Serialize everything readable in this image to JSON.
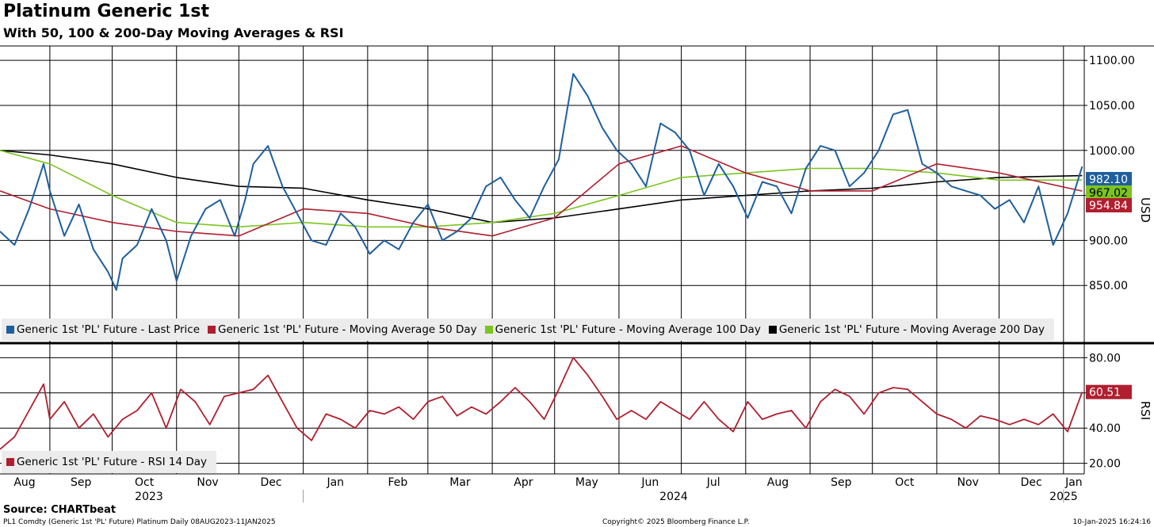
{
  "header": {
    "title": "Platinum Generic 1st",
    "subtitle": "With 50, 100 & 200-Day Moving Averages & RSI"
  },
  "footer": {
    "source": "Source: CHARTbeat",
    "left": "PL1 Comdty (Generic 1st 'PL' Future) Platinum  Daily 08AUG2023-11JAN2025",
    "center": "Copyright© 2025 Bloomberg Finance L.P.",
    "right": "10-Jan-2025 16:24:16"
  },
  "colors": {
    "price": "#1f5f9e",
    "ma50": "#b01f2f",
    "ma100": "#7cc41f",
    "ma200": "#000000",
    "rsi": "#b01f2f",
    "grid": "#000000"
  },
  "chart_data": [
    {
      "type": "line",
      "ylabel": "USD",
      "ylim": [
        822,
        1116
      ],
      "yticks": [
        "850.00",
        "900.00",
        "950.00",
        "1000.00",
        "1050.00",
        "1100.00"
      ],
      "x_months": [
        "Aug",
        "Sep",
        "Oct",
        "Nov",
        "Dec",
        "Jan",
        "Feb",
        "Mar",
        "Apr",
        "May",
        "Jun",
        "Jul",
        "Aug",
        "Sep",
        "Oct",
        "Nov",
        "Dec",
        "Jan"
      ],
      "x_years": [
        "2023",
        "2024",
        "2025"
      ],
      "x_range": [
        "2023-08-08",
        "2025-01-11"
      ],
      "last_value_labels": [
        {
          "series": "Generic 1st 'PL' Future - Last Price",
          "value": "982.10"
        },
        {
          "series": "Generic 1st 'PL' Future - Moving Average 100 Day",
          "value": "967.02"
        },
        {
          "series": "Generic 1st 'PL' Future - Moving Average 50 Day",
          "value": "954.84"
        }
      ],
      "series": [
        {
          "name": "Generic 1st 'PL' Future - Last Price",
          "x": [
            "2023-08-08",
            "2023-08-15",
            "2023-08-22",
            "2023-08-29",
            "2023-09-01",
            "2023-09-08",
            "2023-09-15",
            "2023-09-22",
            "2023-09-29",
            "2023-10-03",
            "2023-10-06",
            "2023-10-13",
            "2023-10-20",
            "2023-10-27",
            "2023-11-01",
            "2023-11-08",
            "2023-11-15",
            "2023-11-22",
            "2023-11-29",
            "2023-12-04",
            "2023-12-08",
            "2023-12-15",
            "2023-12-22",
            "2023-12-29",
            "2024-01-05",
            "2024-01-12",
            "2024-01-19",
            "2024-01-26",
            "2024-02-02",
            "2024-02-09",
            "2024-02-16",
            "2024-02-23",
            "2024-03-01",
            "2024-03-08",
            "2024-03-15",
            "2024-03-22",
            "2024-03-29",
            "2024-04-05",
            "2024-04-12",
            "2024-04-19",
            "2024-04-26",
            "2024-05-03",
            "2024-05-10",
            "2024-05-17",
            "2024-05-24",
            "2024-05-31",
            "2024-06-07",
            "2024-06-14",
            "2024-06-21",
            "2024-06-28",
            "2024-07-05",
            "2024-07-12",
            "2024-07-19",
            "2024-07-26",
            "2024-08-02",
            "2024-08-09",
            "2024-08-16",
            "2024-08-23",
            "2024-08-30",
            "2024-09-06",
            "2024-09-13",
            "2024-09-20",
            "2024-09-27",
            "2024-10-04",
            "2024-10-11",
            "2024-10-18",
            "2024-10-25",
            "2024-11-01",
            "2024-11-08",
            "2024-11-15",
            "2024-11-22",
            "2024-11-29",
            "2024-12-06",
            "2024-12-13",
            "2024-12-20",
            "2024-12-27",
            "2025-01-03",
            "2025-01-10"
          ],
          "values": [
            910,
            895,
            935,
            985,
            955,
            905,
            940,
            890,
            865,
            845,
            880,
            895,
            935,
            900,
            855,
            905,
            935,
            945,
            905,
            945,
            985,
            1005,
            960,
            930,
            900,
            895,
            930,
            915,
            885,
            900,
            890,
            920,
            940,
            900,
            910,
            925,
            960,
            970,
            945,
            925,
            960,
            990,
            1085,
            1060,
            1025,
            1000,
            985,
            960,
            1030,
            1020,
            1000,
            950,
            985,
            960,
            925,
            965,
            960,
            930,
            980,
            1005,
            1000,
            960,
            975,
            1000,
            1040,
            1045,
            985,
            975,
            960,
            955,
            950,
            935,
            945,
            920,
            960,
            895,
            930,
            982.1
          ]
        },
        {
          "name": "Generic 1st 'PL' Future - Moving Average 50 Day",
          "x": [
            "2023-08-08",
            "2023-09-01",
            "2023-10-01",
            "2023-11-01",
            "2023-12-01",
            "2024-01-01",
            "2024-02-01",
            "2024-03-01",
            "2024-04-01",
            "2024-05-01",
            "2024-06-01",
            "2024-07-01",
            "2024-08-01",
            "2024-09-01",
            "2024-10-01",
            "2024-11-01",
            "2024-12-01",
            "2025-01-10"
          ],
          "values": [
            955,
            935,
            920,
            910,
            905,
            935,
            930,
            915,
            905,
            925,
            985,
            1005,
            975,
            955,
            955,
            985,
            975,
            954.84
          ]
        },
        {
          "name": "Generic 1st 'PL' Future - Moving Average 100 Day",
          "x": [
            "2023-08-08",
            "2023-09-01",
            "2023-10-01",
            "2023-11-01",
            "2023-12-01",
            "2024-01-01",
            "2024-02-01",
            "2024-03-01",
            "2024-04-01",
            "2024-05-01",
            "2024-06-01",
            "2024-07-01",
            "2024-08-01",
            "2024-09-01",
            "2024-10-01",
            "2024-11-01",
            "2024-12-01",
            "2025-01-10"
          ],
          "values": [
            1000,
            985,
            950,
            920,
            915,
            920,
            915,
            915,
            920,
            930,
            950,
            970,
            975,
            980,
            980,
            975,
            967,
            967.02
          ]
        },
        {
          "name": "Generic 1st 'PL' Future - Moving Average 200 Day",
          "x": [
            "2023-08-08",
            "2023-09-01",
            "2023-10-01",
            "2023-11-01",
            "2023-12-01",
            "2024-01-01",
            "2024-02-01",
            "2024-03-01",
            "2024-04-01",
            "2024-05-01",
            "2024-06-01",
            "2024-07-01",
            "2024-08-01",
            "2024-09-01",
            "2024-10-01",
            "2024-11-01",
            "2024-12-01",
            "2025-01-10"
          ],
          "values": [
            1000,
            995,
            985,
            970,
            960,
            958,
            945,
            935,
            920,
            925,
            935,
            945,
            950,
            955,
            958,
            965,
            970,
            972
          ]
        }
      ],
      "legend": [
        "Generic 1st 'PL' Future - Last Price",
        "Generic 1st 'PL' Future - Moving Average 50 Day",
        "Generic 1st 'PL' Future - Moving Average 100 Day",
        "Generic 1st 'PL' Future - Moving Average 200 Day"
      ]
    },
    {
      "type": "line",
      "ylabel": "RSI",
      "ylim": [
        14,
        86
      ],
      "yticks": [
        "20.00",
        "40.00",
        "60.00",
        "80.00"
      ],
      "last_value_labels": [
        {
          "series": "Generic 1st 'PL' Future - RSI 14 Day",
          "value": "60.51"
        }
      ],
      "series": [
        {
          "name": "Generic 1st 'PL' Future - RSI 14 Day",
          "x": [
            "2023-08-08",
            "2023-08-15",
            "2023-08-22",
            "2023-08-29",
            "2023-09-01",
            "2023-09-08",
            "2023-09-15",
            "2023-09-22",
            "2023-09-29",
            "2023-10-06",
            "2023-10-13",
            "2023-10-20",
            "2023-10-27",
            "2023-11-03",
            "2023-11-10",
            "2023-11-17",
            "2023-11-24",
            "2023-12-01",
            "2023-12-08",
            "2023-12-15",
            "2023-12-22",
            "2023-12-29",
            "2024-01-05",
            "2024-01-12",
            "2024-01-19",
            "2024-01-26",
            "2024-02-02",
            "2024-02-09",
            "2024-02-16",
            "2024-02-23",
            "2024-03-01",
            "2024-03-08",
            "2024-03-15",
            "2024-03-22",
            "2024-03-29",
            "2024-04-05",
            "2024-04-12",
            "2024-04-19",
            "2024-04-26",
            "2024-05-03",
            "2024-05-10",
            "2024-05-17",
            "2024-05-24",
            "2024-05-31",
            "2024-06-07",
            "2024-06-14",
            "2024-06-21",
            "2024-06-28",
            "2024-07-05",
            "2024-07-12",
            "2024-07-19",
            "2024-07-26",
            "2024-08-02",
            "2024-08-09",
            "2024-08-16",
            "2024-08-23",
            "2024-08-30",
            "2024-09-06",
            "2024-09-13",
            "2024-09-20",
            "2024-09-27",
            "2024-10-04",
            "2024-10-11",
            "2024-10-18",
            "2024-10-25",
            "2024-11-01",
            "2024-11-08",
            "2024-11-15",
            "2024-11-22",
            "2024-11-29",
            "2024-12-06",
            "2024-12-13",
            "2024-12-20",
            "2024-12-27",
            "2025-01-03",
            "2025-01-10"
          ],
          "values": [
            28,
            35,
            50,
            65,
            45,
            55,
            40,
            48,
            35,
            45,
            50,
            60,
            40,
            62,
            55,
            42,
            58,
            60,
            62,
            70,
            55,
            40,
            33,
            48,
            45,
            40,
            50,
            48,
            52,
            45,
            55,
            58,
            47,
            52,
            48,
            55,
            63,
            55,
            45,
            62,
            80,
            70,
            58,
            45,
            50,
            45,
            55,
            50,
            45,
            55,
            45,
            38,
            55,
            45,
            48,
            50,
            40,
            55,
            62,
            58,
            48,
            60,
            63,
            62,
            55,
            48,
            45,
            40,
            47,
            45,
            42,
            45,
            42,
            48,
            38,
            60.51
          ]
        }
      ],
      "legend": [
        "Generic 1st 'PL' Future - RSI 14 Day"
      ]
    }
  ]
}
